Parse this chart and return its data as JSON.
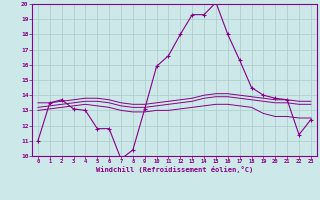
{
  "xlabel": "Windchill (Refroidissement éolien,°C)",
  "bg_color": "#cce8e8",
  "line_color": "#880088",
  "grid_color": "#aacccc",
  "spine_color": "#880088",
  "xlim": [
    -0.5,
    23.5
  ],
  "ylim": [
    10,
    20
  ],
  "yticks": [
    10,
    11,
    12,
    13,
    14,
    15,
    16,
    17,
    18,
    19,
    20
  ],
  "xticks": [
    0,
    1,
    2,
    3,
    4,
    5,
    6,
    7,
    8,
    9,
    10,
    11,
    12,
    13,
    14,
    15,
    16,
    17,
    18,
    19,
    20,
    21,
    22,
    23
  ],
  "series_main": [
    11.0,
    13.5,
    13.7,
    13.1,
    13.0,
    11.8,
    11.8,
    9.8,
    10.4,
    13.1,
    15.9,
    16.6,
    18.0,
    19.3,
    19.3,
    20.1,
    18.0,
    16.3,
    14.5,
    14.0,
    13.8,
    13.7,
    11.4,
    12.4
  ],
  "series_flat1": [
    13.5,
    13.5,
    13.6,
    13.7,
    13.8,
    13.8,
    13.7,
    13.5,
    13.4,
    13.4,
    13.5,
    13.6,
    13.7,
    13.8,
    14.0,
    14.1,
    14.1,
    14.0,
    13.9,
    13.8,
    13.7,
    13.7,
    13.6,
    13.6
  ],
  "series_flat2": [
    13.0,
    13.1,
    13.2,
    13.3,
    13.4,
    13.3,
    13.2,
    13.0,
    12.9,
    12.9,
    13.0,
    13.0,
    13.1,
    13.2,
    13.3,
    13.4,
    13.4,
    13.3,
    13.2,
    12.8,
    12.6,
    12.6,
    12.5,
    12.5
  ],
  "series_flat3": [
    13.2,
    13.3,
    13.4,
    13.5,
    13.6,
    13.6,
    13.5,
    13.3,
    13.2,
    13.2,
    13.3,
    13.4,
    13.5,
    13.6,
    13.8,
    13.9,
    13.9,
    13.8,
    13.7,
    13.6,
    13.5,
    13.5,
    13.4,
    13.4
  ]
}
